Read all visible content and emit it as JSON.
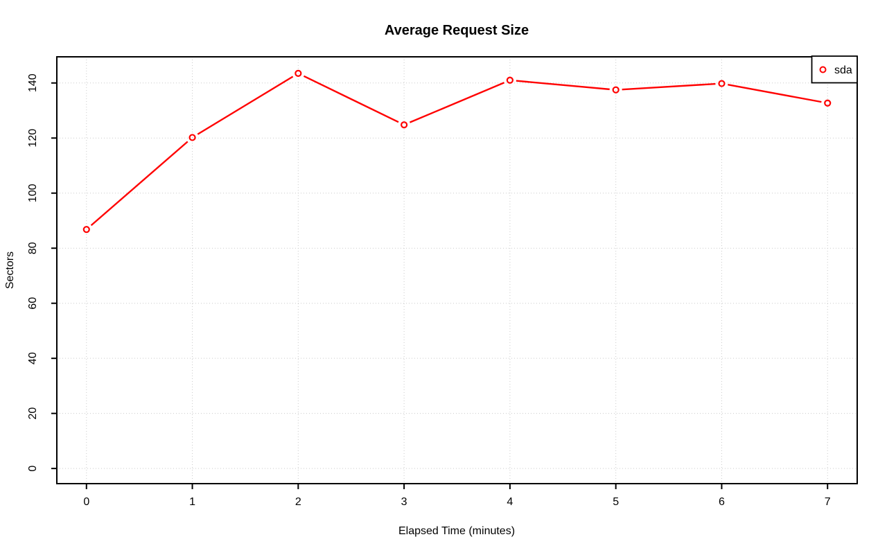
{
  "page": {
    "background": "#ffffff"
  },
  "chart_data": {
    "type": "line",
    "title": "Average Request Size",
    "xlabel": "Elapsed Time (minutes)",
    "ylabel": "Sectors",
    "x": [
      0,
      1,
      2,
      3,
      4,
      5,
      6,
      7
    ],
    "series": [
      {
        "name": "sda",
        "color": "#ff0000",
        "marker": "open-circle",
        "values": [
          86.8,
          120.2,
          143.5,
          124.8,
          141.0,
          137.5,
          139.8,
          132.7
        ]
      }
    ],
    "x_ticks": [
      "0",
      "1",
      "2",
      "3",
      "4",
      "5",
      "6",
      "7"
    ],
    "y_ticks": [
      "0",
      "20",
      "40",
      "60",
      "80",
      "100",
      "120",
      "140"
    ],
    "x_tick_values": [
      0,
      1,
      2,
      3,
      4,
      5,
      6,
      7
    ],
    "y_tick_values": [
      0,
      20,
      40,
      60,
      80,
      100,
      120,
      140
    ],
    "x_range": [
      -0.28,
      7.28
    ],
    "y_range": [
      -5.5,
      149.5
    ],
    "grid": "dotted",
    "grid_color": "#c9c9c9",
    "axis_color": "#000000",
    "background_color": "#ffffff",
    "legend": {
      "position": "top-right",
      "entries": [
        "sda"
      ]
    }
  }
}
